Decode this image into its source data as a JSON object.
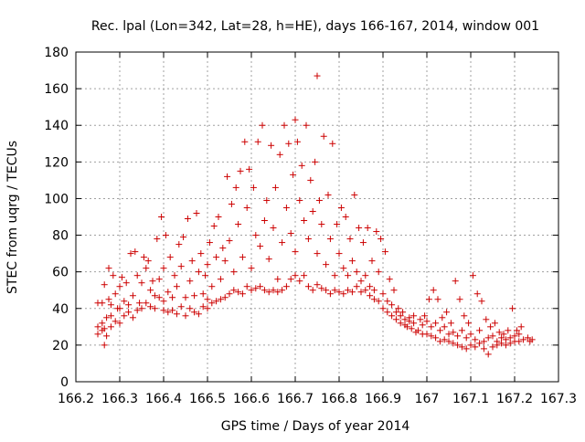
{
  "chart_data": {
    "type": "scatter",
    "title": "Rec. lpal (Lon=342, Lat=28, h=HE), days 166-167, 2014, window 001",
    "xlabel": "GPS time / Days of year 2014",
    "ylabel": "STEC from uqrg / TECUs",
    "xlim": [
      166.2,
      167.3
    ],
    "ylim": [
      0,
      180
    ],
    "xticks": [
      166.2,
      166.3,
      166.4,
      166.5,
      166.6,
      166.7,
      166.8,
      166.9,
      167,
      167.1,
      167.2,
      167.3
    ],
    "yticks": [
      0,
      20,
      40,
      60,
      80,
      100,
      120,
      140,
      160,
      180
    ],
    "xtick_labels": [
      "166.2",
      "166.3",
      "166.4",
      "166.5",
      "166.6",
      "166.7",
      "166.8",
      "166.9",
      "167",
      "167.1",
      "167.2",
      "167.3"
    ],
    "ytick_labels": [
      "0",
      "20",
      "40",
      "60",
      "80",
      "100",
      "120",
      "140",
      "160",
      "180"
    ],
    "grid": true,
    "marker": "+",
    "marker_color": "#cc0000",
    "points": [
      [
        166.25,
        26
      ],
      [
        166.25,
        30
      ],
      [
        166.25,
        43
      ],
      [
        166.26,
        28
      ],
      [
        166.26,
        32
      ],
      [
        166.26,
        43
      ],
      [
        166.265,
        20
      ],
      [
        166.265,
        29
      ],
      [
        166.265,
        53
      ],
      [
        166.27,
        25
      ],
      [
        166.27,
        35
      ],
      [
        166.275,
        62
      ],
      [
        166.275,
        45
      ],
      [
        166.28,
        30
      ],
      [
        166.28,
        36
      ],
      [
        166.28,
        42
      ],
      [
        166.285,
        58
      ],
      [
        166.29,
        33
      ],
      [
        166.29,
        48
      ],
      [
        166.295,
        40
      ],
      [
        166.3,
        32
      ],
      [
        166.3,
        40
      ],
      [
        166.3,
        52
      ],
      [
        166.305,
        57
      ],
      [
        166.31,
        36
      ],
      [
        166.31,
        44
      ],
      [
        166.315,
        54
      ],
      [
        166.32,
        38
      ],
      [
        166.32,
        42
      ],
      [
        166.325,
        70
      ],
      [
        166.33,
        35
      ],
      [
        166.33,
        47
      ],
      [
        166.335,
        71
      ],
      [
        166.34,
        39
      ],
      [
        166.34,
        58
      ],
      [
        166.345,
        43
      ],
      [
        166.35,
        40
      ],
      [
        166.35,
        54
      ],
      [
        166.355,
        68
      ],
      [
        166.36,
        43
      ],
      [
        166.36,
        62
      ],
      [
        166.365,
        66
      ],
      [
        166.37,
        41
      ],
      [
        166.37,
        50
      ],
      [
        166.375,
        55
      ],
      [
        166.38,
        40
      ],
      [
        166.38,
        47
      ],
      [
        166.385,
        78
      ],
      [
        166.39,
        46
      ],
      [
        166.39,
        56
      ],
      [
        166.395,
        90
      ],
      [
        166.4,
        39
      ],
      [
        166.4,
        44
      ],
      [
        166.4,
        62
      ],
      [
        166.405,
        80
      ],
      [
        166.41,
        38
      ],
      [
        166.41,
        49
      ],
      [
        166.415,
        68
      ],
      [
        166.42,
        39
      ],
      [
        166.42,
        46
      ],
      [
        166.425,
        58
      ],
      [
        166.43,
        37
      ],
      [
        166.43,
        52
      ],
      [
        166.435,
        75
      ],
      [
        166.44,
        41
      ],
      [
        166.44,
        63
      ],
      [
        166.445,
        79
      ],
      [
        166.45,
        36
      ],
      [
        166.45,
        46
      ],
      [
        166.455,
        89
      ],
      [
        166.46,
        40
      ],
      [
        166.46,
        55
      ],
      [
        166.465,
        66
      ],
      [
        166.47,
        38
      ],
      [
        166.47,
        47
      ],
      [
        166.475,
        92
      ],
      [
        166.48,
        37
      ],
      [
        166.48,
        60
      ],
      [
        166.485,
        70
      ],
      [
        166.49,
        41
      ],
      [
        166.49,
        48
      ],
      [
        166.495,
        58
      ],
      [
        166.5,
        40
      ],
      [
        166.5,
        45
      ],
      [
        166.5,
        64
      ],
      [
        166.505,
        76
      ],
      [
        166.51,
        43
      ],
      [
        166.51,
        52
      ],
      [
        166.515,
        85
      ],
      [
        166.52,
        44
      ],
      [
        166.52,
        68
      ],
      [
        166.525,
        90
      ],
      [
        166.53,
        45
      ],
      [
        166.53,
        56
      ],
      [
        166.535,
        73
      ],
      [
        166.54,
        46
      ],
      [
        166.54,
        66
      ],
      [
        166.545,
        112
      ],
      [
        166.55,
        48
      ],
      [
        166.55,
        77
      ],
      [
        166.555,
        97
      ],
      [
        166.56,
        50
      ],
      [
        166.56,
        60
      ],
      [
        166.565,
        106
      ],
      [
        166.57,
        49
      ],
      [
        166.57,
        86
      ],
      [
        166.575,
        115
      ],
      [
        166.58,
        48
      ],
      [
        166.58,
        68
      ],
      [
        166.585,
        131
      ],
      [
        166.59,
        52
      ],
      [
        166.59,
        95
      ],
      [
        166.595,
        116
      ],
      [
        166.6,
        50
      ],
      [
        166.6,
        62
      ],
      [
        166.605,
        106
      ],
      [
        166.61,
        51
      ],
      [
        166.61,
        80
      ],
      [
        166.615,
        131
      ],
      [
        166.62,
        52
      ],
      [
        166.62,
        74
      ],
      [
        166.625,
        140
      ],
      [
        166.63,
        50
      ],
      [
        166.63,
        88
      ],
      [
        166.635,
        99
      ],
      [
        166.64,
        49
      ],
      [
        166.64,
        67
      ],
      [
        166.645,
        129
      ],
      [
        166.65,
        50
      ],
      [
        166.65,
        84
      ],
      [
        166.655,
        106
      ],
      [
        166.66,
        49
      ],
      [
        166.66,
        56
      ],
      [
        166.665,
        124
      ],
      [
        166.67,
        50
      ],
      [
        166.67,
        76
      ],
      [
        166.675,
        140
      ],
      [
        166.68,
        52
      ],
      [
        166.68,
        95
      ],
      [
        166.685,
        130
      ],
      [
        166.69,
        56
      ],
      [
        166.69,
        81
      ],
      [
        166.695,
        113
      ],
      [
        166.7,
        58
      ],
      [
        166.7,
        71
      ],
      [
        166.7,
        143
      ],
      [
        166.705,
        131
      ],
      [
        166.71,
        55
      ],
      [
        166.71,
        99
      ],
      [
        166.715,
        118
      ],
      [
        166.72,
        58
      ],
      [
        166.72,
        88
      ],
      [
        166.725,
        140
      ],
      [
        166.73,
        52
      ],
      [
        166.73,
        78
      ],
      [
        166.735,
        110
      ],
      [
        166.74,
        50
      ],
      [
        166.74,
        93
      ],
      [
        166.745,
        120
      ],
      [
        166.75,
        53
      ],
      [
        166.75,
        70
      ],
      [
        166.75,
        167
      ],
      [
        166.755,
        99
      ],
      [
        166.76,
        51
      ],
      [
        166.76,
        86
      ],
      [
        166.765,
        134
      ],
      [
        166.77,
        50
      ],
      [
        166.77,
        64
      ],
      [
        166.775,
        102
      ],
      [
        166.78,
        48
      ],
      [
        166.78,
        78
      ],
      [
        166.785,
        130
      ],
      [
        166.79,
        50
      ],
      [
        166.79,
        58
      ],
      [
        166.795,
        86
      ],
      [
        166.8,
        49
      ],
      [
        166.8,
        70
      ],
      [
        166.805,
        95
      ],
      [
        166.81,
        48
      ],
      [
        166.81,
        62
      ],
      [
        166.815,
        90
      ],
      [
        166.82,
        50
      ],
      [
        166.82,
        58
      ],
      [
        166.825,
        78
      ],
      [
        166.83,
        49
      ],
      [
        166.83,
        66
      ],
      [
        166.835,
        102
      ],
      [
        166.84,
        52
      ],
      [
        166.84,
        60
      ],
      [
        166.845,
        84
      ],
      [
        166.85,
        49
      ],
      [
        166.85,
        55
      ],
      [
        166.855,
        76
      ],
      [
        166.86,
        50
      ],
      [
        166.86,
        58
      ],
      [
        166.865,
        84
      ],
      [
        166.87,
        47
      ],
      [
        166.87,
        52
      ],
      [
        166.875,
        66
      ],
      [
        166.88,
        45
      ],
      [
        166.88,
        50
      ],
      [
        166.885,
        82
      ],
      [
        166.89,
        44
      ],
      [
        166.89,
        60
      ],
      [
        166.895,
        78
      ],
      [
        166.9,
        40
      ],
      [
        166.9,
        48
      ],
      [
        166.905,
        71
      ],
      [
        166.91,
        38
      ],
      [
        166.91,
        44
      ],
      [
        166.915,
        56
      ],
      [
        166.92,
        36
      ],
      [
        166.92,
        42
      ],
      [
        166.925,
        50
      ],
      [
        166.93,
        34
      ],
      [
        166.93,
        38
      ],
      [
        166.935,
        40
      ],
      [
        166.94,
        32
      ],
      [
        166.94,
        36
      ],
      [
        166.945,
        38
      ],
      [
        166.95,
        31
      ],
      [
        166.95,
        34
      ],
      [
        166.955,
        30
      ],
      [
        166.96,
        33
      ],
      [
        166.96,
        35
      ],
      [
        166.965,
        29
      ],
      [
        166.97,
        32
      ],
      [
        166.97,
        36
      ],
      [
        166.975,
        27
      ],
      [
        166.98,
        28
      ],
      [
        166.985,
        34
      ],
      [
        166.99,
        26
      ],
      [
        166.99,
        31
      ],
      [
        166.995,
        36
      ],
      [
        167.0,
        26
      ],
      [
        167.0,
        33
      ],
      [
        167.005,
        45
      ],
      [
        167.01,
        25
      ],
      [
        167.01,
        30
      ],
      [
        167.015,
        50
      ],
      [
        167.02,
        24
      ],
      [
        167.02,
        32
      ],
      [
        167.025,
        45
      ],
      [
        167.03,
        22
      ],
      [
        167.03,
        28
      ],
      [
        167.035,
        35
      ],
      [
        167.04,
        23
      ],
      [
        167.04,
        30
      ],
      [
        167.045,
        38
      ],
      [
        167.05,
        22
      ],
      [
        167.05,
        26
      ],
      [
        167.055,
        32
      ],
      [
        167.06,
        21
      ],
      [
        167.06,
        27
      ],
      [
        167.065,
        55
      ],
      [
        167.07,
        20
      ],
      [
        167.07,
        25
      ],
      [
        167.075,
        45
      ],
      [
        167.08,
        19
      ],
      [
        167.08,
        28
      ],
      [
        167.085,
        36
      ],
      [
        167.09,
        18
      ],
      [
        167.09,
        24
      ],
      [
        167.095,
        32
      ],
      [
        167.1,
        20
      ],
      [
        167.1,
        26
      ],
      [
        167.105,
        58
      ],
      [
        167.11,
        19
      ],
      [
        167.11,
        23
      ],
      [
        167.115,
        48
      ],
      [
        167.12,
        21
      ],
      [
        167.12,
        28
      ],
      [
        167.125,
        44
      ],
      [
        167.13,
        18
      ],
      [
        167.13,
        22
      ],
      [
        167.135,
        34
      ],
      [
        167.14,
        15
      ],
      [
        167.14,
        24
      ],
      [
        167.145,
        30
      ],
      [
        167.15,
        19
      ],
      [
        167.15,
        25
      ],
      [
        167.155,
        32
      ],
      [
        167.16,
        20
      ],
      [
        167.16,
        22
      ],
      [
        167.165,
        27
      ],
      [
        167.17,
        21
      ],
      [
        167.17,
        24
      ],
      [
        167.175,
        26
      ],
      [
        167.18,
        20
      ],
      [
        167.18,
        23
      ],
      [
        167.185,
        28
      ],
      [
        167.19,
        21
      ],
      [
        167.19,
        24
      ],
      [
        167.195,
        40
      ],
      [
        167.2,
        22
      ],
      [
        167.2,
        25
      ],
      [
        167.205,
        28
      ],
      [
        167.21,
        22
      ],
      [
        167.21,
        26
      ],
      [
        167.215,
        30
      ],
      [
        167.22,
        23
      ],
      [
        167.23,
        24
      ],
      [
        167.235,
        22
      ],
      [
        167.24,
        23
      ]
    ]
  }
}
